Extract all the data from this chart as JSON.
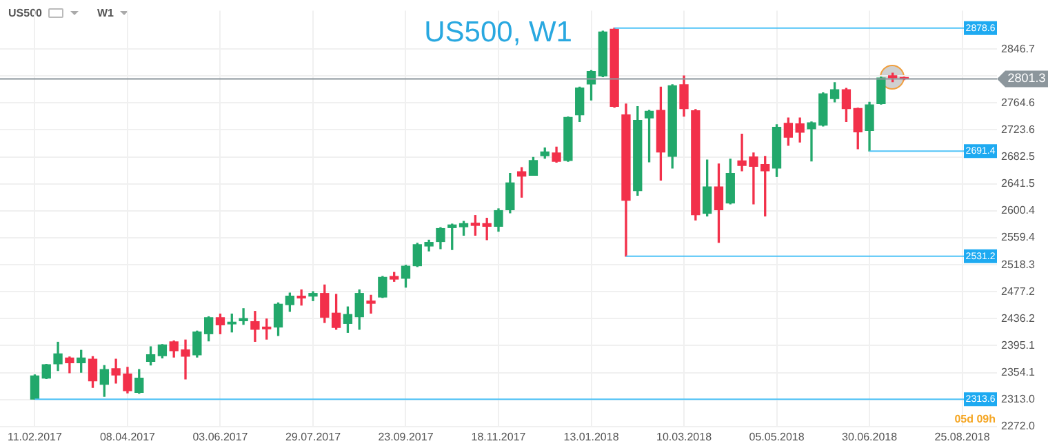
{
  "chart_data": {
    "type": "candlestick",
    "title": "US500, W1",
    "x": [
      "2017-02-11",
      "2017-02-18",
      "2017-02-25",
      "2017-03-04",
      "2017-03-11",
      "2017-03-18",
      "2017-03-25",
      "2017-04-01",
      "2017-04-08",
      "2017-04-15",
      "2017-04-22",
      "2017-04-29",
      "2017-05-06",
      "2017-05-13",
      "2017-05-20",
      "2017-05-27",
      "2017-06-03",
      "2017-06-10",
      "2017-06-17",
      "2017-06-24",
      "2017-07-01",
      "2017-07-08",
      "2017-07-15",
      "2017-07-22",
      "2017-07-29",
      "2017-08-05",
      "2017-08-12",
      "2017-08-19",
      "2017-08-26",
      "2017-09-02",
      "2017-09-09",
      "2017-09-16",
      "2017-09-23",
      "2017-09-30",
      "2017-10-07",
      "2017-10-14",
      "2017-10-21",
      "2017-10-28",
      "2017-11-04",
      "2017-11-11",
      "2017-11-18",
      "2017-11-25",
      "2017-12-02",
      "2017-12-09",
      "2017-12-16",
      "2017-12-23",
      "2017-12-30",
      "2018-01-06",
      "2018-01-13",
      "2018-01-20",
      "2018-01-27",
      "2018-02-03",
      "2018-02-10",
      "2018-02-17",
      "2018-02-24",
      "2018-03-03",
      "2018-03-10",
      "2018-03-17",
      "2018-03-24",
      "2018-03-31",
      "2018-04-07",
      "2018-04-14",
      "2018-04-21",
      "2018-04-28",
      "2018-05-05",
      "2018-05-12",
      "2018-05-19",
      "2018-05-26",
      "2018-06-02",
      "2018-06-09",
      "2018-06-16",
      "2018-06-23",
      "2018-06-30",
      "2018-07-07",
      "2018-07-14",
      "2018-07-21"
    ],
    "ohlc": [
      [
        2313.7,
        2350.5,
        2313.6,
        2349.1
      ],
      [
        2345.7,
        2366.5,
        2345.0,
        2366.2
      ],
      [
        2367.5,
        2400.3,
        2357.3,
        2382.5
      ],
      [
        2376.4,
        2377.8,
        2353.9,
        2368.9
      ],
      [
        2368.9,
        2388.0,
        2354.6,
        2376.4
      ],
      [
        2374.4,
        2378.4,
        2331.4,
        2341.6
      ],
      [
        2336.2,
        2364.8,
        2317.8,
        2358.7
      ],
      [
        2360.0,
        2374.4,
        2338.2,
        2350.5
      ],
      [
        2351.9,
        2362.1,
        2323.2,
        2326.6
      ],
      [
        2323.9,
        2358.7,
        2322.5,
        2345.7
      ],
      [
        2371.0,
        2393.4,
        2365.5,
        2381.2
      ],
      [
        2379.8,
        2396.8,
        2376.4,
        2396.2
      ],
      [
        2400.9,
        2402.3,
        2377.8,
        2387.3
      ],
      [
        2388.7,
        2403.7,
        2344.4,
        2379.1
      ],
      [
        2381.2,
        2417.3,
        2377.8,
        2415.9
      ],
      [
        2413.2,
        2439.1,
        2402.3,
        2437.7
      ],
      [
        2437.7,
        2443.2,
        2413.2,
        2426.8
      ],
      [
        2428.2,
        2443.2,
        2415.9,
        2430.9
      ],
      [
        2433.0,
        2451.4,
        2427.5,
        2436.4
      ],
      [
        2431.6,
        2447.3,
        2401.6,
        2420.0
      ],
      [
        2423.4,
        2435.7,
        2405.0,
        2420.7
      ],
      [
        2423.4,
        2460.2,
        2410.5,
        2458.2
      ],
      [
        2457.5,
        2475.2,
        2447.3,
        2470.5
      ],
      [
        2470.5,
        2480.0,
        2456.8,
        2467.7
      ],
      [
        2470.5,
        2477.3,
        2463.6,
        2474.6
      ],
      [
        2474.6,
        2487.5,
        2430.3,
        2438.4
      ],
      [
        2444.6,
        2473.2,
        2420.0,
        2422.8
      ],
      [
        2428.9,
        2454.1,
        2415.3,
        2442.5
      ],
      [
        2439.1,
        2480.0,
        2420.0,
        2474.6
      ],
      [
        2463.0,
        2471.8,
        2444.6,
        2459.6
      ],
      [
        2469.1,
        2500.5,
        2468.4,
        2499.1
      ],
      [
        2500.5,
        2506.6,
        2493.0,
        2496.4
      ],
      [
        2497.7,
        2517.5,
        2484.1,
        2516.1
      ],
      [
        2516.8,
        2551.0,
        2515.5,
        2548.9
      ],
      [
        2546.8,
        2555.7,
        2539.3,
        2552.3
      ],
      [
        2553.6,
        2574.8,
        2542.7,
        2573.4
      ],
      [
        2574.8,
        2580.2,
        2541.4,
        2578.9
      ],
      [
        2576.1,
        2584.3,
        2563.2,
        2580.9
      ],
      [
        2581.6,
        2593.2,
        2563.2,
        2578.2
      ],
      [
        2580.9,
        2589.1,
        2556.4,
        2576.8
      ],
      [
        2576.8,
        2603.4,
        2569.3,
        2600.7
      ],
      [
        2602.0,
        2657.3,
        2597.3,
        2642.9
      ],
      [
        2660.0,
        2666.1,
        2621.1,
        2653.2
      ],
      [
        2654.5,
        2681.8,
        2654.5,
        2677.0
      ],
      [
        2684.5,
        2696.1,
        2680.4,
        2690.0
      ],
      [
        2688.6,
        2697.5,
        2674.3,
        2675.7
      ],
      [
        2677.0,
        2743.2,
        2675.7,
        2742.5
      ],
      [
        2746.6,
        2788.8,
        2736.3,
        2787.5
      ],
      [
        2793.6,
        2814.0,
        2769.1,
        2812.7
      ],
      [
        2805.9,
        2874.1,
        2804.5,
        2872.7
      ],
      [
        2876.8,
        2878.6,
        2758.2,
        2759.5
      ],
      [
        2746.6,
        2762.9,
        2531.2,
        2616.4
      ],
      [
        2631.0,
        2759.0,
        2624.0,
        2738.0
      ],
      [
        2741.7,
        2753.3,
        2675.0,
        2752.0
      ],
      [
        2753.4,
        2788.8,
        2647.0,
        2690.0
      ],
      [
        2683.2,
        2792.3,
        2665.4,
        2790.9
      ],
      [
        2792.3,
        2805.9,
        2744.5,
        2756.1
      ],
      [
        2752.7,
        2754.7,
        2586.4,
        2594.5
      ],
      [
        2596.6,
        2677.7,
        2592.5,
        2636.8
      ],
      [
        2636.8,
        2671.6,
        2552.3,
        2602.0
      ],
      [
        2612.3,
        2679.1,
        2610.9,
        2657.3
      ],
      [
        2676.3,
        2717.2,
        2661.3,
        2669.5
      ],
      [
        2682.5,
        2688.6,
        2610.9,
        2668.2
      ],
      [
        2670.9,
        2683.2,
        2592.5,
        2661.3
      ],
      [
        2665.4,
        2731.6,
        2652.5,
        2727.5
      ],
      [
        2733.6,
        2741.8,
        2700.2,
        2712.5
      ],
      [
        2732.9,
        2741.8,
        2705.0,
        2720.0
      ],
      [
        2725.4,
        2735.6,
        2676.3,
        2734.3
      ],
      [
        2730.9,
        2780.0,
        2729.5,
        2778.6
      ],
      [
        2771.1,
        2795.6,
        2766.3,
        2784.7
      ],
      [
        2784.7,
        2786.8,
        2736.3,
        2756.1
      ],
      [
        2756.1,
        2756.8,
        2694.8,
        2720.7
      ],
      [
        2722.7,
        2765.6,
        2691.4,
        2761.6
      ],
      [
        2763.6,
        2803.9,
        2762.9,
        2802.5
      ],
      [
        2806.0,
        2810.0,
        2797.0,
        2803.0
      ],
      [
        2803.0,
        2804.0,
        2800.0,
        2801.3
      ]
    ],
    "colors": [
      "#22a86b",
      "#22a86b",
      "#22a86b",
      "#f2304a",
      "#22a86b",
      "#f2304a",
      "#22a86b",
      "#f2304a",
      "#f2304a",
      "#22a86b",
      "#22a86b",
      "#22a86b",
      "#f2304a",
      "#f2304a",
      "#22a86b",
      "#22a86b",
      "#f2304a",
      "#22a86b",
      "#22a86b",
      "#f2304a",
      "#f2304a",
      "#22a86b",
      "#22a86b",
      "#f2304a",
      "#22a86b",
      "#f2304a",
      "#f2304a",
      "#22a86b",
      "#22a86b",
      "#f2304a",
      "#22a86b",
      "#f2304a",
      "#22a86b",
      "#22a86b",
      "#22a86b",
      "#22a86b",
      "#22a86b",
      "#22a86b",
      "#f2304a",
      "#f2304a",
      "#22a86b",
      "#22a86b",
      "#f2304a",
      "#22a86b",
      "#22a86b",
      "#f2304a",
      "#22a86b",
      "#22a86b",
      "#22a86b",
      "#22a86b",
      "#f2304a",
      "#f2304a",
      "#22a86b",
      "#22a86b",
      "#f2304a",
      "#22a86b",
      "#f2304a",
      "#f2304a",
      "#22a86b",
      "#f2304a",
      "#22a86b",
      "#f2304a",
      "#f2304a",
      "#f2304a",
      "#22a86b",
      "#f2304a",
      "#f2304a",
      "#22a86b",
      "#22a86b",
      "#22a86b",
      "#f2304a",
      "#f2304a",
      "#22a86b",
      "#22a86b",
      "#f2304a",
      "#f2304a"
    ],
    "xlim": [
      "2017-01-21",
      "2018-09-15"
    ],
    "xticks": [
      {
        "value": "2017-02-11",
        "label": "11.02.2017"
      },
      {
        "value": "2017-04-08",
        "label": "08.04.2017"
      },
      {
        "value": "2017-06-03",
        "label": "03.06.2017"
      },
      {
        "value": "2017-07-29",
        "label": "29.07.2017"
      },
      {
        "value": "2017-09-23",
        "label": "23.09.2017"
      },
      {
        "value": "2017-11-18",
        "label": "18.11.2017"
      },
      {
        "value": "2018-01-13",
        "label": "13.01.2018"
      },
      {
        "value": "2018-03-10",
        "label": "10.03.2018"
      },
      {
        "value": "2018-05-05",
        "label": "05.05.2018"
      },
      {
        "value": "2018-06-30",
        "label": "30.06.2018"
      },
      {
        "value": "2018-08-25",
        "label": "25.08.2018"
      }
    ],
    "ylim": [
      2272,
      2905
    ],
    "yticks": [
      {
        "value": 2272,
        "label": "2272.0"
      },
      {
        "value": 2313,
        "label": "2313.0"
      },
      2354.1,
      2395.1,
      2436.2,
      2477.2,
      2518.3,
      2559.4,
      2600.4,
      2641.5,
      2682.5,
      2723.6,
      2764.6,
      {
        "value": 2805.6,
        "label": null
      },
      2846.7
    ],
    "grid": true,
    "ref_lines": [
      {
        "axis": "y",
        "value": 2801.3,
        "label": "2801.3",
        "color": "#8c969c"
      }
    ],
    "annotations": [
      "US500",
      "W1",
      "05d 09h",
      {
        "text": "2878.6",
        "x": "2018-01-27",
        "y": 2878.6
      },
      {
        "text": "2691.4",
        "x": "2018-06-30",
        "y": 2691.4
      },
      {
        "text": "2531.2",
        "x": "2018-02-03",
        "y": 2531.2
      },
      {
        "text": "2313.6",
        "x": "2017-02-11",
        "y": 2313.6
      }
    ]
  }
}
